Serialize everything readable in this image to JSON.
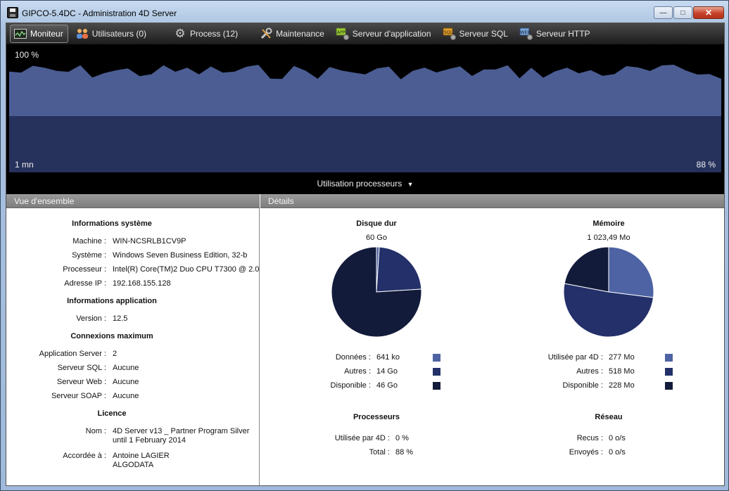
{
  "window": {
    "title": "GIPCO-5.4DC - Administration 4D Server",
    "controls": {
      "minimize": "—",
      "maximize": "□",
      "close": "✕"
    }
  },
  "toolbar": {
    "items": [
      {
        "label": "Moniteur",
        "icon": "monitor-icon",
        "active": true
      },
      {
        "label": "Utilisateurs (0)",
        "icon": "users-icon"
      },
      {
        "label": "Process (12)",
        "icon": "gear-icon"
      },
      {
        "label": "Maintenance",
        "icon": "tools-icon"
      },
      {
        "label": "Serveur d'application",
        "icon": "app-server-icon"
      },
      {
        "label": "Serveur SQL",
        "icon": "sql-server-icon"
      },
      {
        "label": "Serveur HTTP",
        "icon": "http-server-icon"
      }
    ]
  },
  "graph": {
    "top_label": "100 %",
    "time_label": "1 mn",
    "current_value": "88 %",
    "selector_label": "Utilisation processeurs"
  },
  "overview": {
    "header": "Vue d'ensemble",
    "system": {
      "title": "Informations système",
      "machine_label": "Machine :",
      "machine": "WIN-NCSRLB1CV9P",
      "os_label": "Système :",
      "os": "Windows Seven Business Edition, 32-b",
      "cpu_label": "Processeur :",
      "cpu": "Intel(R) Core(TM)2 Duo CPU T7300 @ 2.0",
      "ip_label": "Adresse IP :",
      "ip": "192.168.155.128"
    },
    "application": {
      "title": "Informations application",
      "version_label": "Version :",
      "version": "12.5"
    },
    "connections": {
      "title": "Connexions maximum",
      "app_server_label": "Application Server :",
      "app_server": "2",
      "sql_label": "Serveur SQL :",
      "sql": "Aucune",
      "web_label": "Serveur Web :",
      "web": "Aucune",
      "soap_label": "Serveur SOAP :",
      "soap": "Aucune"
    },
    "licence": {
      "title": "Licence",
      "name_label": "Nom :",
      "name_line1": "4D Server v13 _ Partner Program Silver",
      "name_line2": "until 1 February 2014",
      "granted_label": "Accordée à :",
      "granted_line1": "Antoine LAGIER",
      "granted_line2": "ALGODATA"
    }
  },
  "details": {
    "header": "Détails",
    "disk": {
      "title": "Disque dur",
      "total": "60 Go",
      "data_label": "Données :",
      "data": "641 ko",
      "others_label": "Autres :",
      "others": "14 Go",
      "free_label": "Disponible :",
      "free": "46 Go"
    },
    "memory": {
      "title": "Mémoire",
      "total": "1 023,49 Mo",
      "used_label": "Utilisée par 4D :",
      "used": "277 Mo",
      "others_label": "Autres :",
      "others": "518 Mo",
      "free_label": "Disponible :",
      "free": "228 Mo"
    },
    "processors": {
      "title": "Processeurs",
      "used_label": "Utilisée par 4D :",
      "used": "0 %",
      "total_label": "Total :",
      "total": "88 %"
    },
    "network": {
      "title": "Réseau",
      "received_label": "Recus :",
      "received": "0 o/s",
      "sent_label": "Envoyés :",
      "sent": "0 o/s"
    }
  },
  "colors": {
    "light_blue": "#4e63a3",
    "mid_blue": "#23306a",
    "dark_blue": "#131b3a",
    "graph_fill": "#4b5d93"
  },
  "pies": {
    "disk": [
      0.01,
      0.23,
      0.76
    ],
    "memory": [
      0.27,
      0.51,
      0.22
    ]
  }
}
